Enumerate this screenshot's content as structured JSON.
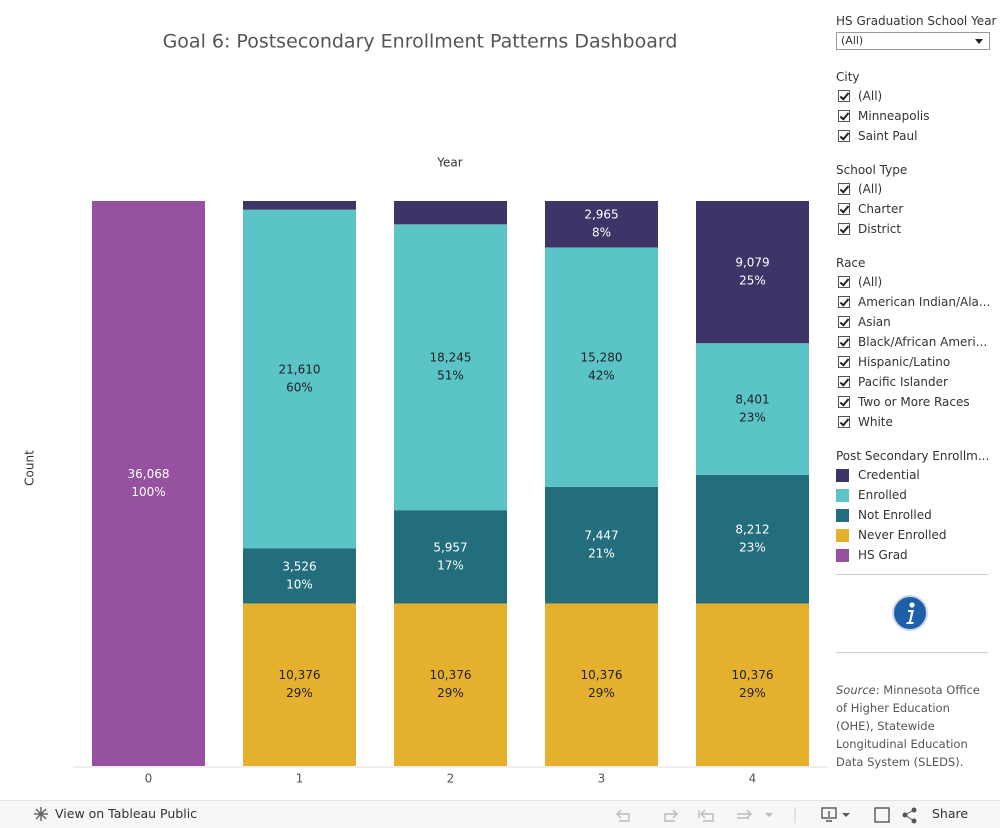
{
  "chart_data": {
    "type": "stacked_bar",
    "title": "Goal 6: Postsecondary Enrollment Patterns Dashboard",
    "x_label": "Year",
    "y_label": "Count",
    "categories": [
      "0",
      "1",
      "2",
      "3",
      "4"
    ],
    "ylim": [
      0,
      36068
    ],
    "legend_title": "Post Secondary Enrollm...",
    "series": [
      {
        "name": "Credential",
        "color": "#3e3467",
        "label_color": "#ffffff",
        "values": [
          null,
          556,
          1490,
          2965,
          9079
        ],
        "value_labels": [
          null,
          null,
          null,
          "2,965",
          "9,079"
        ],
        "percent_labels": [
          null,
          null,
          null,
          "8%",
          "25%"
        ]
      },
      {
        "name": "Enrolled",
        "color": "#5bc4c6",
        "label_color": "#222222",
        "values": [
          null,
          21610,
          18245,
          15280,
          8401
        ],
        "value_labels": [
          null,
          "21,610",
          "18,245",
          "15,280",
          "8,401"
        ],
        "percent_labels": [
          null,
          "60%",
          "51%",
          "42%",
          "23%"
        ]
      },
      {
        "name": "Not Enrolled",
        "color": "#236e7c",
        "label_color": "#ffffff",
        "values": [
          null,
          3526,
          5957,
          7447,
          8212
        ],
        "value_labels": [
          null,
          "3,526",
          "5,957",
          "7,447",
          "8,212"
        ],
        "percent_labels": [
          null,
          "10%",
          "17%",
          "21%",
          "23%"
        ]
      },
      {
        "name": "Never Enrolled",
        "color": "#e5b02d",
        "label_color": "#222222",
        "values": [
          null,
          10376,
          10376,
          10376,
          10376
        ],
        "value_labels": [
          null,
          "10,376",
          "10,376",
          "10,376",
          "10,376"
        ],
        "percent_labels": [
          null,
          "29%",
          "29%",
          "29%",
          "29%"
        ]
      },
      {
        "name": "HS Grad",
        "color": "#9652a0",
        "label_color": "#ffffff",
        "values": [
          36068,
          null,
          null,
          null,
          null
        ],
        "value_labels": [
          "36,068",
          null,
          null,
          null,
          null
        ],
        "percent_labels": [
          "100%",
          null,
          null,
          null,
          null
        ]
      }
    ]
  },
  "filters": [
    {
      "title": "HS Graduation School Year",
      "selected": "(All)"
    },
    {
      "title": "City",
      "options": [
        "(All)",
        "Minneapolis",
        "Saint Paul"
      ]
    },
    {
      "title": "School Type",
      "options": [
        "(All)",
        "Charter",
        "District"
      ]
    },
    {
      "title": "Race",
      "options": [
        "(All)",
        "American Indian/Ala...",
        "Asian",
        "Black/African Ameri...",
        "Hispanic/Latino",
        "Pacific Islander",
        "Two or More Races",
        "White"
      ]
    }
  ],
  "source": {
    "label": "Source",
    "text": ": Minnesota Office of Higher Education (OHE), Statewide Longitudinal Education Data System (SLEDS)."
  },
  "toolbar": {
    "view": "View on Tableau Public",
    "share": "Share"
  }
}
